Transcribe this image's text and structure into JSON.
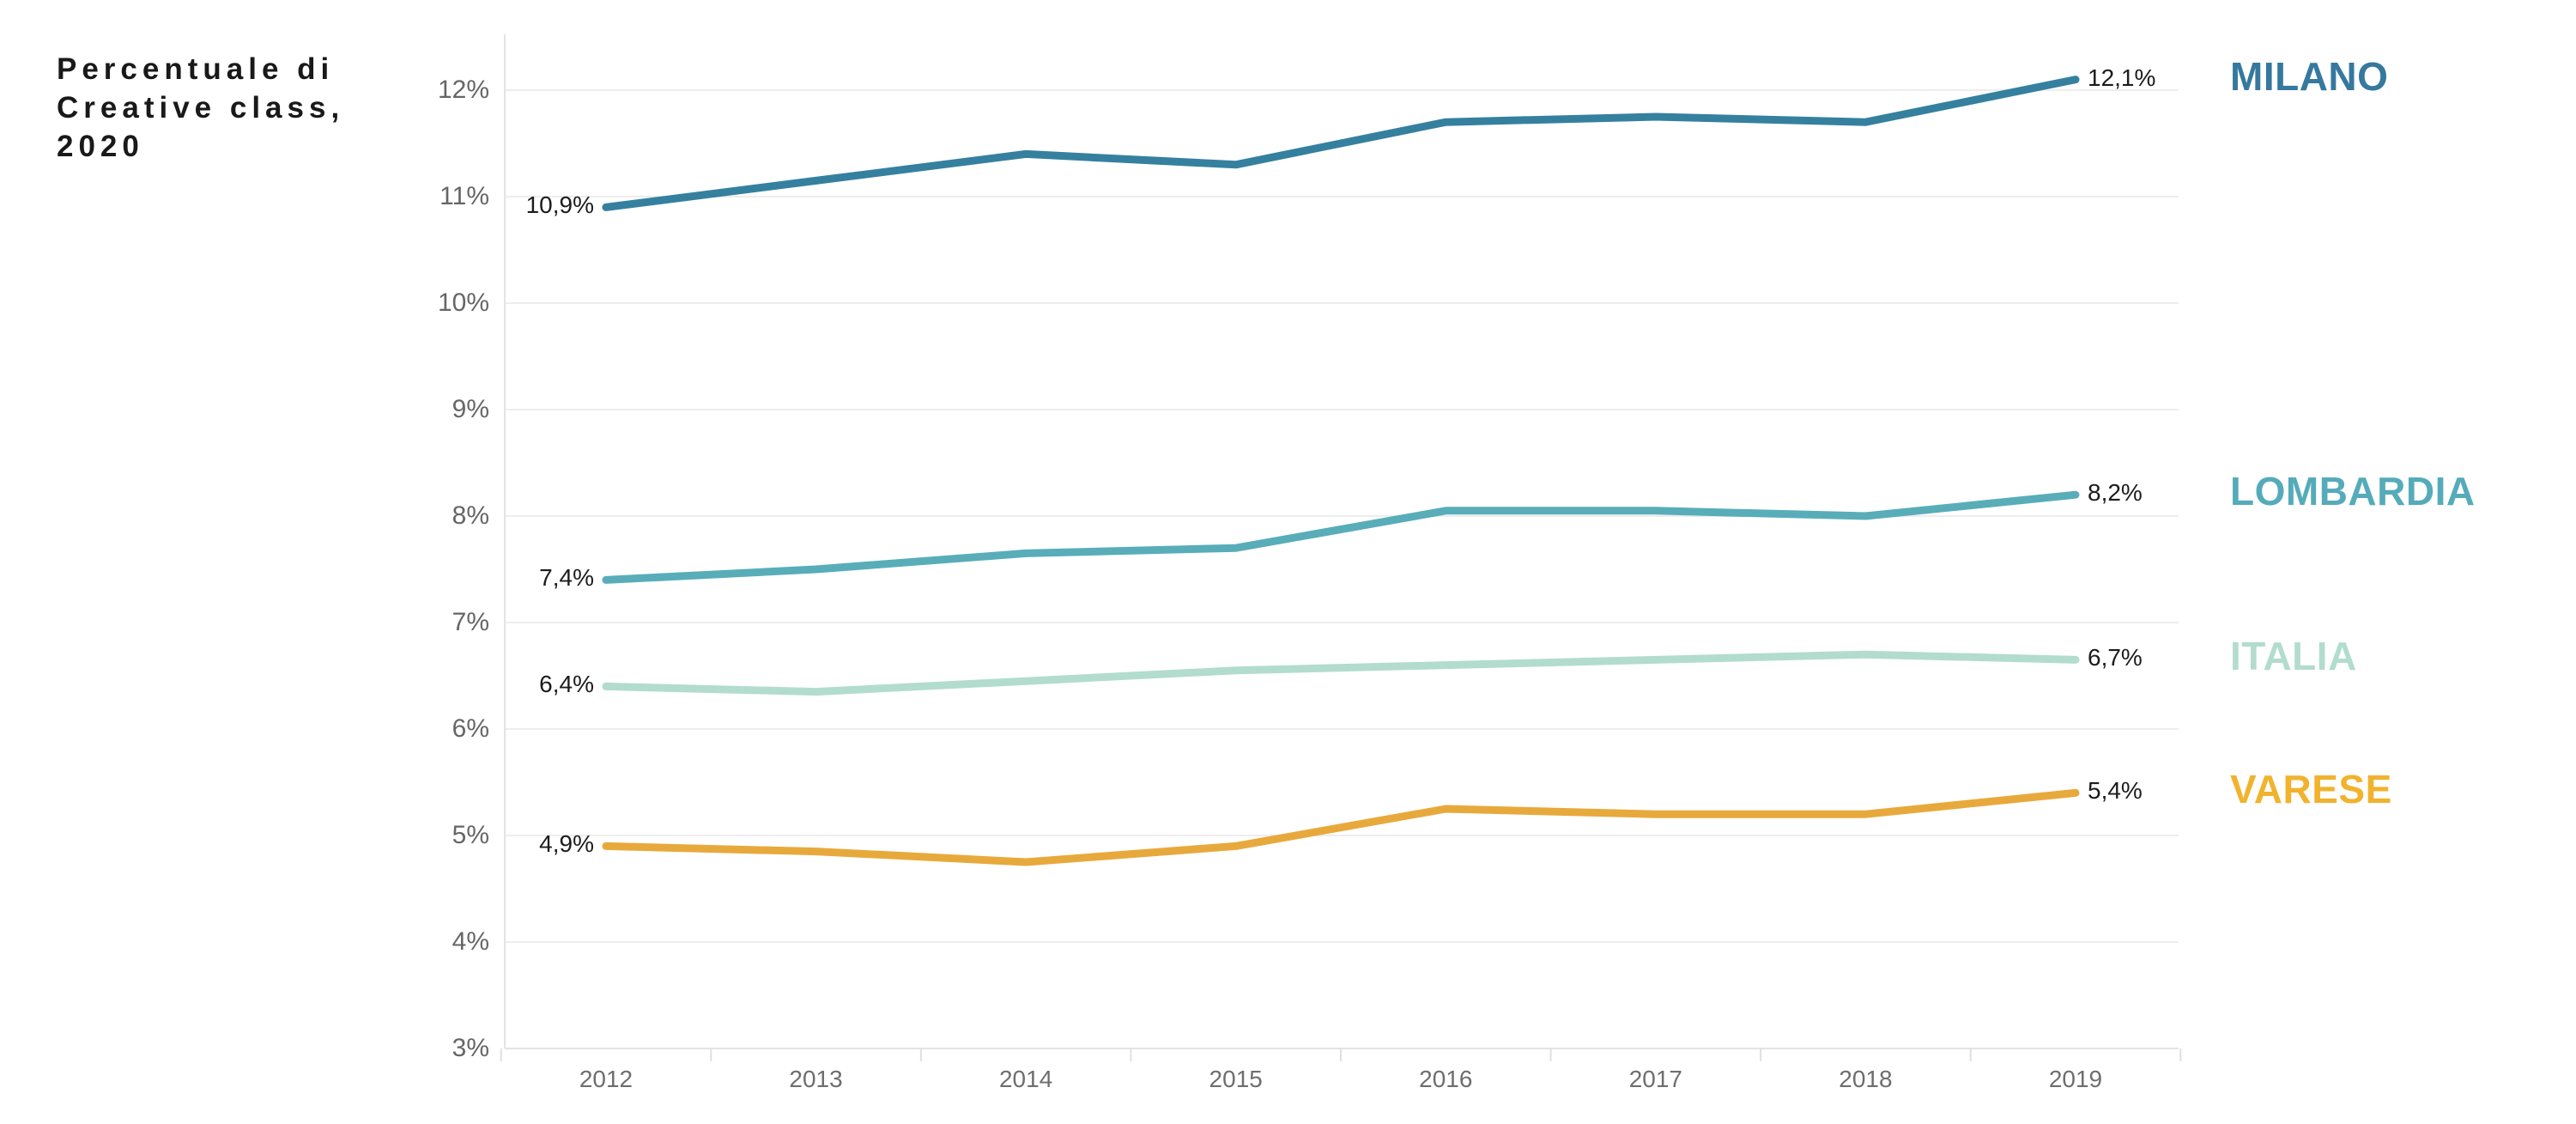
{
  "chart_data": {
    "type": "line",
    "title": "Percentuale di\nCreative class,\n2020",
    "x": [
      "2012",
      "2013",
      "2014",
      "2015",
      "2016",
      "2017",
      "2018",
      "2019"
    ],
    "y_tick_labels": [
      "12%",
      "11%",
      "10%",
      "9%",
      "8%",
      "7%",
      "6%",
      "5%",
      "4%",
      "3%"
    ],
    "y_tick_values": [
      12,
      11,
      10,
      9,
      8,
      7,
      6,
      5,
      4,
      3
    ],
    "ylim": [
      3,
      12.5
    ],
    "grid": true,
    "legend_position": "right",
    "series": [
      {
        "name": "MILANO",
        "color": "#35809f",
        "label_color": "#36789e",
        "values": [
          10.9,
          11.15,
          11.4,
          11.3,
          11.7,
          11.75,
          11.7,
          12.1
        ],
        "start_label": "10,9%",
        "end_label": "12,1%"
      },
      {
        "name": "LOMBARDIA",
        "color": "#58adb9",
        "label_color": "#55abb9",
        "values": [
          7.4,
          7.5,
          7.65,
          7.7,
          8.05,
          8.05,
          8.0,
          8.2
        ],
        "start_label": "7,4%",
        "end_label": "8,2%"
      },
      {
        "name": "ITALIA",
        "color": "#b2dcce",
        "label_color": "#b2dcce",
        "values": [
          6.4,
          6.35,
          6.45,
          6.55,
          6.6,
          6.65,
          6.7,
          6.65
        ],
        "start_label": "6,4%",
        "end_label": "6,7%"
      },
      {
        "name": "VARESE",
        "color": "#e8a93c",
        "label_color": "#f1b32e",
        "values": [
          4.9,
          4.85,
          4.75,
          4.9,
          5.25,
          5.2,
          5.2,
          5.4
        ],
        "start_label": "4,9%",
        "end_label": "5,4%"
      }
    ]
  }
}
